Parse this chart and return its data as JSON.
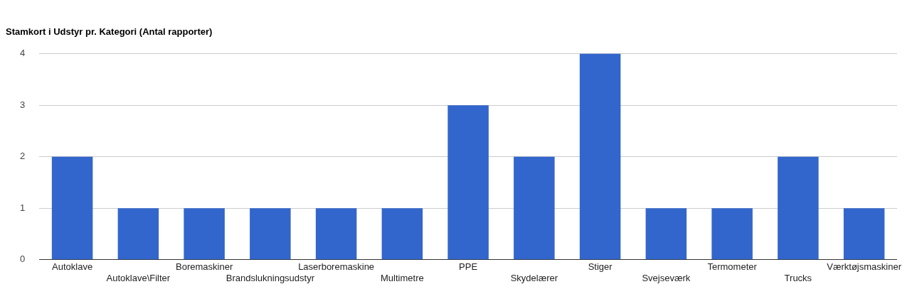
{
  "chart_data": {
    "type": "bar",
    "title": "Stamkort i Udstyr pr. Kategori (Antal rapporter)",
    "categories": [
      "Autoklave",
      "Autoklave\\Filter",
      "Boremaskiner",
      "Brandslukningsudstyr",
      "Laserboremaskine",
      "Multimetre",
      "PPE",
      "Skydelærer",
      "Stiger",
      "Svejseværk",
      "Termometer",
      "Trucks",
      "Værktøjsmaskiner"
    ],
    "values": [
      2,
      1,
      1,
      1,
      1,
      1,
      3,
      2,
      4,
      1,
      1,
      2,
      1
    ],
    "color": "#3366cc",
    "ylim": [
      0,
      4
    ],
    "yticks": [
      0,
      1,
      2,
      3,
      4
    ],
    "grid": "y"
  }
}
